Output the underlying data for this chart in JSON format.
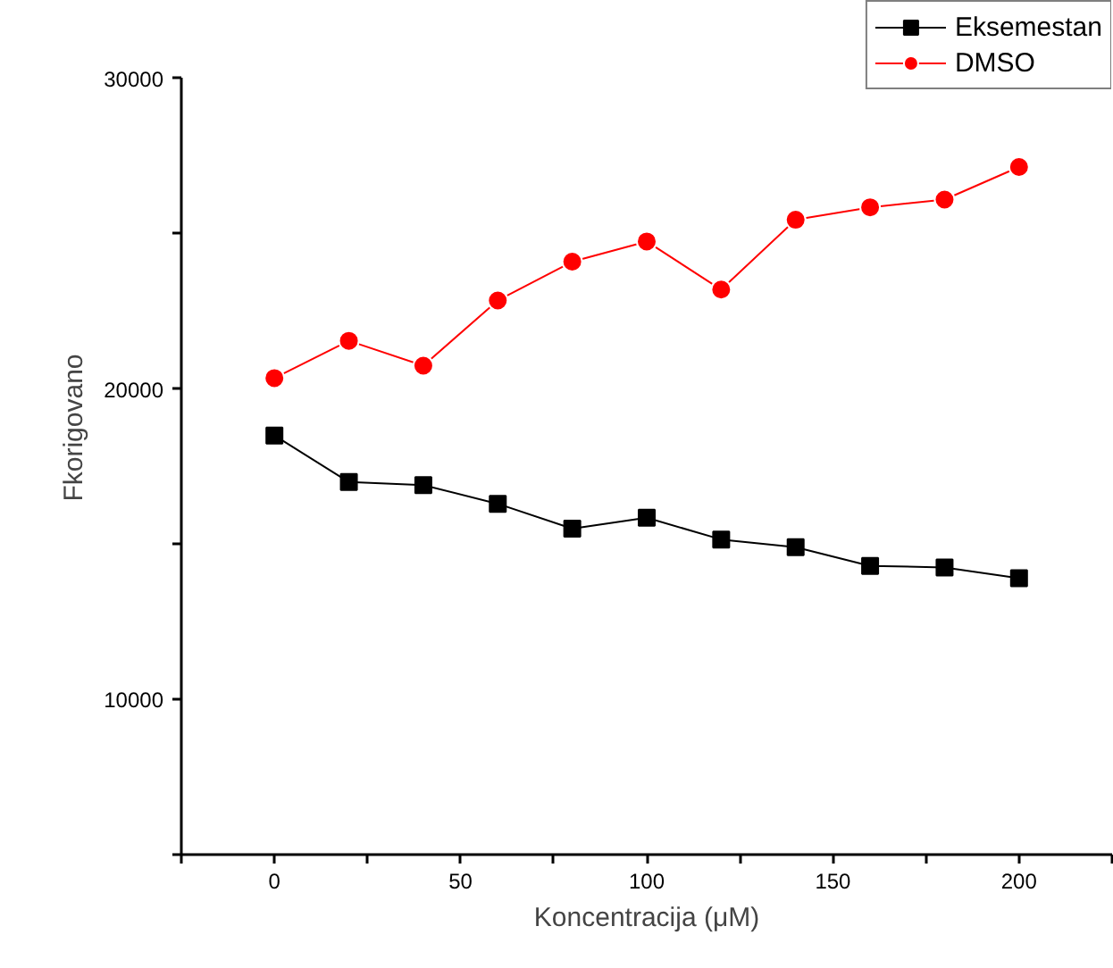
{
  "chart_data": {
    "type": "line",
    "xlabel": "Koncentracija (μM)",
    "ylabel": "Fkorigovano",
    "x": [
      0,
      20,
      40,
      60,
      80,
      100,
      120,
      140,
      160,
      180,
      200
    ],
    "series": [
      {
        "name": "Eksemestan",
        "color": "#000000",
        "marker": "square",
        "values": [
          18500,
          17000,
          16900,
          16300,
          15500,
          15850,
          15150,
          14900,
          14300,
          14250,
          13900
        ]
      },
      {
        "name": "DMSO",
        "color": "#ff0000",
        "marker": "circle",
        "values": [
          20350,
          21550,
          20750,
          22850,
          24100,
          24750,
          23200,
          25450,
          25850,
          26100,
          27150
        ]
      }
    ],
    "xlim": [
      -25,
      225
    ],
    "ylim": [
      5000,
      30000
    ],
    "xticks": [
      {
        "value": -25,
        "label": null
      },
      0,
      {
        "value": 25,
        "label": null
      },
      50,
      {
        "value": 75,
        "label": null
      },
      100,
      {
        "value": 125,
        "label": null
      },
      150,
      {
        "value": 175,
        "label": null
      },
      200,
      {
        "value": 225,
        "label": null
      }
    ],
    "yticks": [
      {
        "value": 5000,
        "label": null
      },
      10000,
      {
        "value": 15000,
        "label": null
      },
      20000,
      {
        "value": 25000,
        "label": null
      },
      30000
    ],
    "grid": false,
    "legend": "top right",
    "line_style": "solid"
  }
}
